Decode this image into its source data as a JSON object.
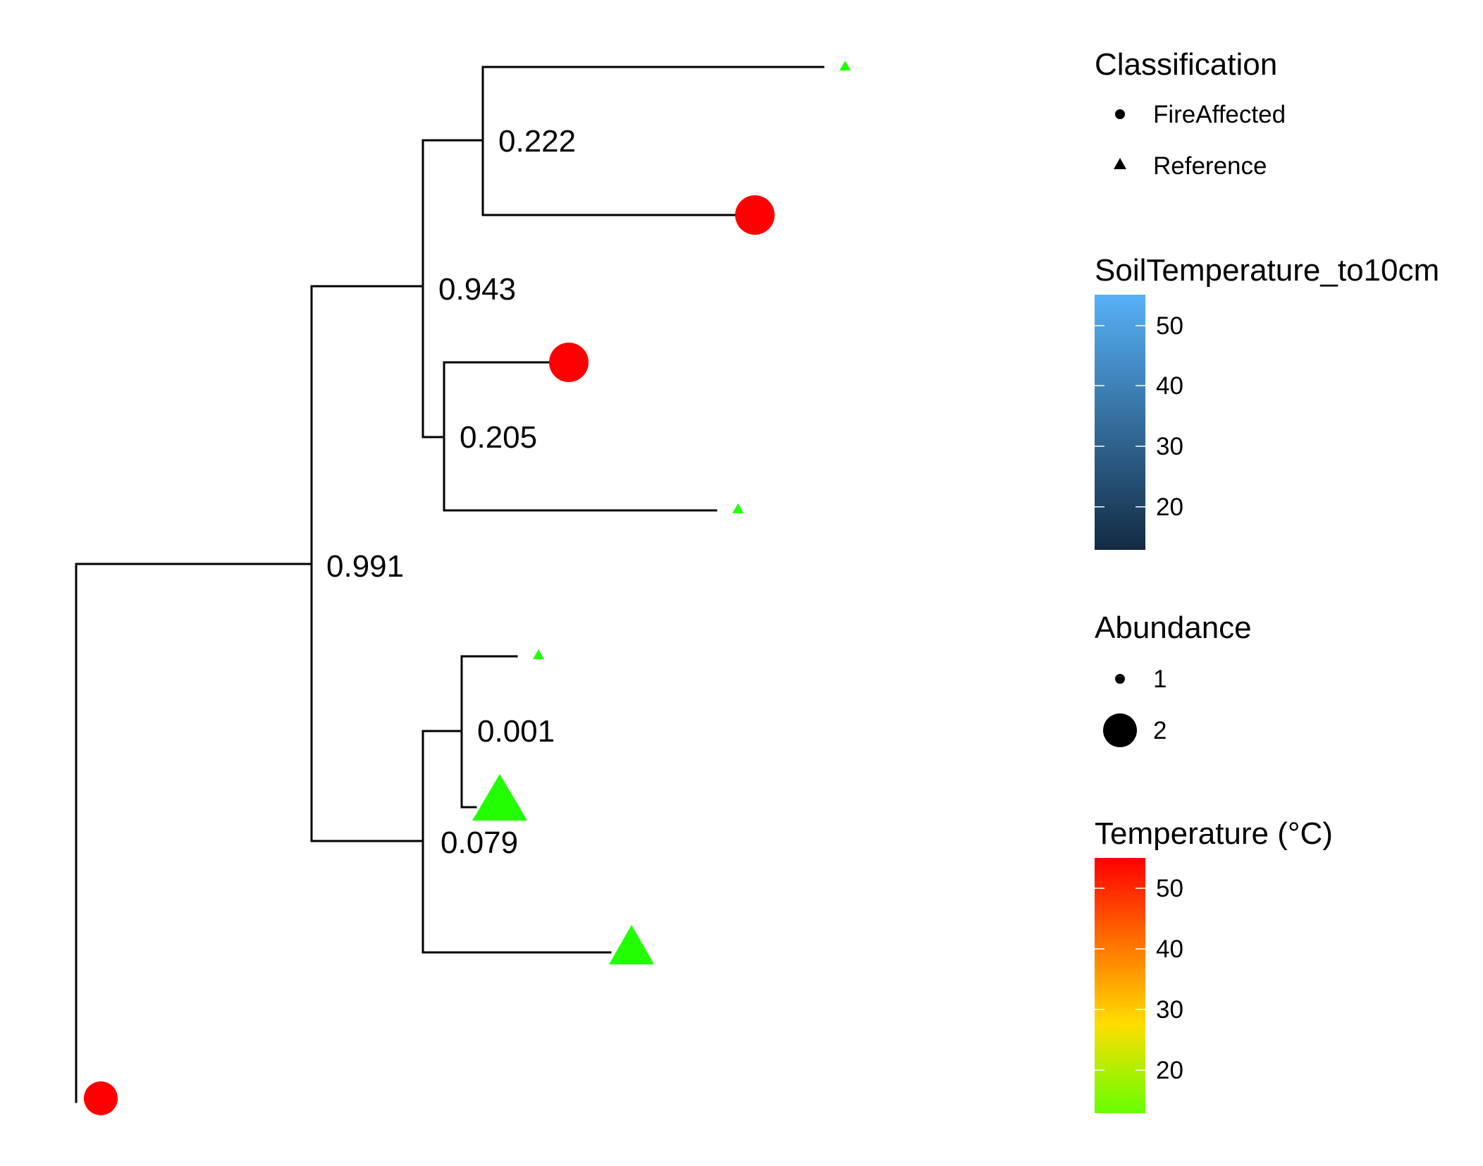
{
  "tree": {
    "branch_color": "#000000",
    "node_labels": [
      "0.222",
      "0.943",
      "0.205",
      "0.991",
      "0.001",
      "0.079"
    ],
    "tips": [
      {
        "id": "tip1",
        "classification": "Reference",
        "abundance": 1,
        "temperature": 14,
        "color": "#22ff00"
      },
      {
        "id": "tip2",
        "classification": "FireAffected",
        "abundance": 2,
        "temperature": 55,
        "color": "#ff0000"
      },
      {
        "id": "tip3",
        "classification": "FireAffected",
        "abundance": 2,
        "temperature": 55,
        "color": "#ff0000"
      },
      {
        "id": "tip4",
        "classification": "Reference",
        "abundance": 1,
        "temperature": 14,
        "color": "#22ff00"
      },
      {
        "id": "tip5",
        "classification": "Reference",
        "abundance": 1,
        "temperature": 14,
        "color": "#22ff00"
      },
      {
        "id": "tip6",
        "classification": "Reference",
        "abundance": 2,
        "temperature": 14,
        "color": "#22ff00"
      },
      {
        "id": "tip7",
        "classification": "Reference",
        "abundance": 2,
        "temperature": 14,
        "color": "#22ff00"
      },
      {
        "id": "tip8",
        "classification": "FireAffected",
        "abundance": 2,
        "temperature": 55,
        "color": "#ff0000"
      }
    ]
  },
  "legends": {
    "classification": {
      "title": "Classification",
      "items": [
        {
          "label": "FireAffected",
          "shape": "circle"
        },
        {
          "label": "Reference",
          "shape": "triangle"
        }
      ]
    },
    "soil_temperature": {
      "title": "SoilTemperature_to10cm",
      "ticks": [
        "50",
        "40",
        "30",
        "20"
      ],
      "gradient_colors": [
        "#132b43",
        "#56b1f7"
      ]
    },
    "abundance": {
      "title": "Abundance",
      "items": [
        {
          "label": "1",
          "size": "small"
        },
        {
          "label": "2",
          "size": "large"
        }
      ]
    },
    "temperature": {
      "title": "Temperature (°C)",
      "ticks": [
        "50",
        "40",
        "30",
        "20"
      ],
      "gradient_colors": [
        "#66ff00",
        "#ffdd00",
        "#ff8800",
        "#ff0000"
      ]
    }
  }
}
